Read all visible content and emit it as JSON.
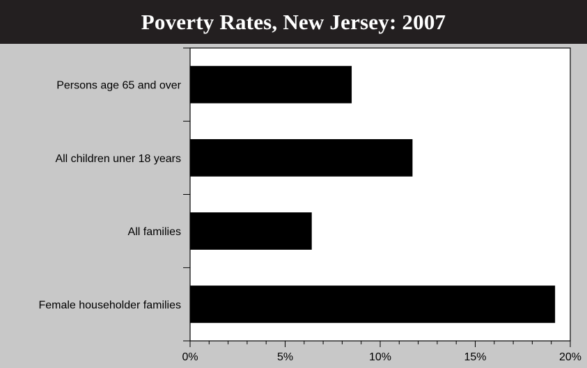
{
  "chart_data": {
    "type": "bar",
    "orientation": "horizontal",
    "title": "Poverty Rates, New Jersey: 2007",
    "categories": [
      "Persons age 65 and over",
      "All children uner 18 years",
      "All families",
      "Female householder families"
    ],
    "values": [
      8.5,
      11.7,
      6.4,
      19.2
    ],
    "xlim": [
      0,
      20
    ],
    "x_ticks": [
      0,
      5,
      10,
      15,
      20
    ],
    "x_tick_labels": [
      "0%",
      "5%",
      "10%",
      "15%",
      "20%"
    ],
    "xlabel": "",
    "ylabel": "",
    "grid": false,
    "colors": {
      "bar": "#000000",
      "plot_background": "#ffffff",
      "page_background": "#c8c8c8",
      "title_background": "#231f20",
      "title_text": "#ffffff"
    }
  }
}
